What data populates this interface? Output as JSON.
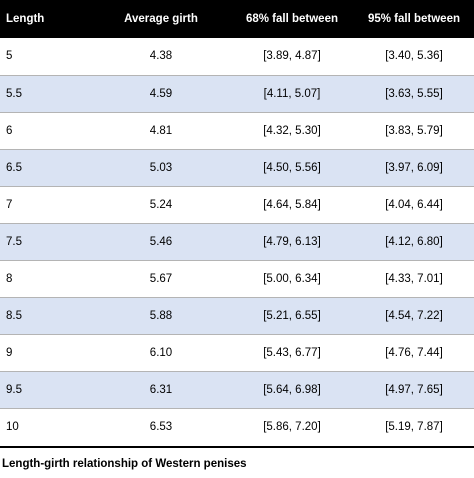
{
  "colors": {
    "header_background": "#000000",
    "header_text": "#ffffff",
    "stripe": "#dae3f3",
    "row_border": "#b4b4b4"
  },
  "table": {
    "headers": [
      "Length",
      "Average girth",
      "68% fall between",
      "95% fall between"
    ],
    "rows": [
      [
        "5",
        "4.38",
        "[3.89, 4.87]",
        "[3.40, 5.36]"
      ],
      [
        "5.5",
        "4.59",
        "[4.11, 5.07]",
        "[3.63, 5.55]"
      ],
      [
        "6",
        "4.81",
        "[4.32, 5.30]",
        "[3.83, 5.79]"
      ],
      [
        "6.5",
        "5.03",
        "[4.50, 5.56]",
        "[3.97, 6.09]"
      ],
      [
        "7",
        "5.24",
        "[4.64, 5.84]",
        "[4.04, 6.44]"
      ],
      [
        "7.5",
        "5.46",
        "[4.79, 6.13]",
        "[4.12, 6.80]"
      ],
      [
        "8",
        "5.67",
        "[5.00, 6.34]",
        "[4.33, 7.01]"
      ],
      [
        "8.5",
        "5.88",
        "[5.21, 6.55]",
        "[4.54, 7.22]"
      ],
      [
        "9",
        "6.10",
        "[5.43, 6.77]",
        "[4.76, 7.44]"
      ],
      [
        "9.5",
        "6.31",
        "[5.64, 6.98]",
        "[4.97, 7.65]"
      ],
      [
        "10",
        "6.53",
        "[5.86, 7.20]",
        "[5.19, 7.87]"
      ]
    ]
  },
  "caption": "Length-girth relationship of Western penises"
}
